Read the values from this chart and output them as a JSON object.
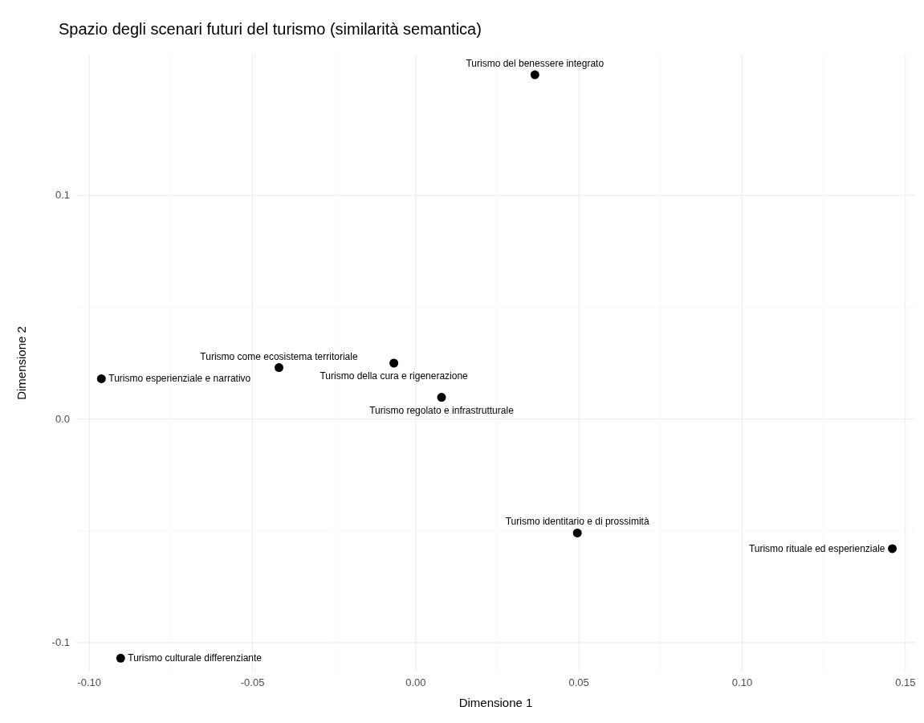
{
  "chart_data": {
    "type": "scatter",
    "title": "Spazio degli scenari futuri del turismo (similarità semantica)",
    "xlabel": "Dimensione 1",
    "ylabel": "Dimensione 2",
    "series": [
      {
        "color": "#000000",
        "x": [
          0.0365,
          -0.0419,
          -0.0067,
          -0.0963,
          0.0079,
          0.0495,
          0.146,
          -0.0904
        ],
        "values": [
          0.154,
          0.023,
          0.025,
          0.018,
          0.0097,
          -0.051,
          -0.058,
          -0.107
        ]
      }
    ],
    "annotations": [
      {
        "text": "Turismo del benessere integrato",
        "x": 0.0365,
        "y": 0.154
      },
      {
        "text": "Turismo come ecosistema territoriale",
        "x": -0.0419,
        "y": 0.023
      },
      {
        "text": "Turismo della cura e rigenerazione",
        "x": -0.0067,
        "y": 0.025
      },
      {
        "text": "Turismo esperienziale e narrativo",
        "x": -0.0963,
        "y": 0.018
      },
      {
        "text": "Turismo regolato e infrastrutturale",
        "x": 0.0079,
        "y": 0.0097
      },
      {
        "text": "Turismo identitario e di prossimità",
        "x": 0.0495,
        "y": -0.051
      },
      {
        "text": "Turismo rituale ed esperienziale",
        "x": 0.146,
        "y": -0.058
      },
      {
        "text": "Turismo culturale differenziante",
        "x": -0.0904,
        "y": -0.107
      }
    ],
    "xlim": [
      -0.104,
      0.153
    ],
    "ylim": [
      -0.113,
      0.163
    ],
    "xticks": [
      {
        "value": -0.1,
        "label": "-0.10"
      },
      {
        "value": -0.05,
        "label": "-0.05"
      },
      {
        "value": 0,
        "label": "0.00"
      },
      {
        "value": 0.05,
        "label": "0.05"
      },
      {
        "value": 0.1,
        "label": "0.10"
      },
      {
        "value": 0.15,
        "label": "0.15"
      }
    ],
    "yticks": [
      {
        "value": -0.1,
        "label": "-0.1"
      },
      {
        "value": 0,
        "label": "0.0"
      },
      {
        "value": 0.1,
        "label": "0.1"
      }
    ],
    "grid": true,
    "marker": "circle"
  }
}
